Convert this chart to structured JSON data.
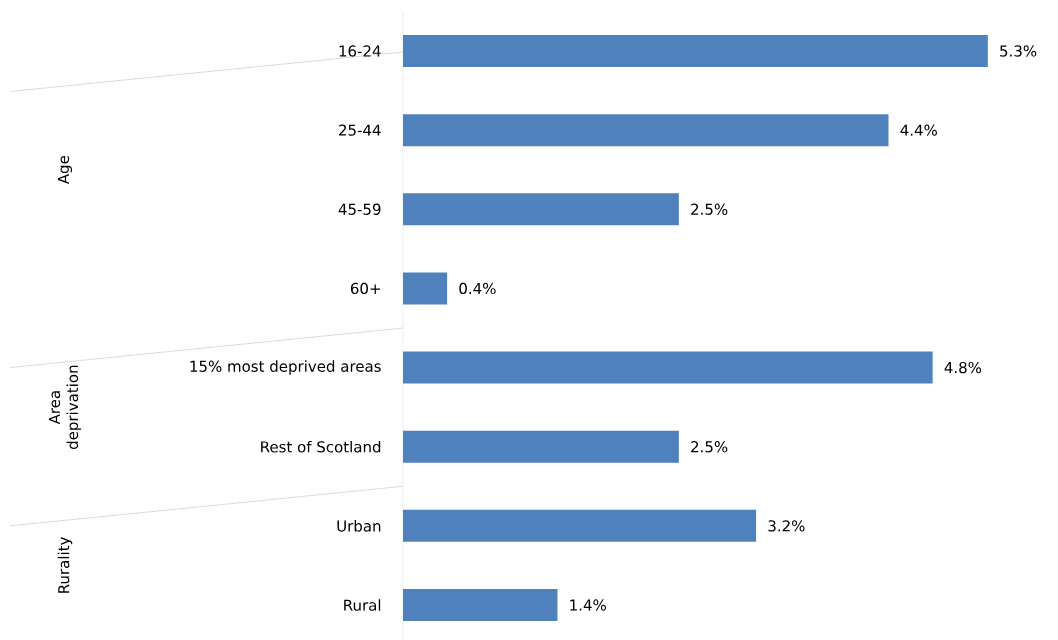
{
  "chart_data": {
    "type": "bar",
    "orientation": "horizontal",
    "categories": [
      "16-24",
      "25-44",
      "45-59",
      "60+",
      "15% most deprived areas",
      "Rest of Scotland",
      "Urban",
      "Rural"
    ],
    "values": [
      5.3,
      4.4,
      2.5,
      0.4,
      4.8,
      2.5,
      3.2,
      1.4
    ],
    "value_labels": [
      "5.3%",
      "4.4%",
      "2.5%",
      "0.4%",
      "4.8%",
      "2.5%",
      "3.2%",
      "1.4%"
    ],
    "color": "#4f81bd",
    "annotations": [
      "Age",
      "Area deprivation",
      "Rurality"
    ]
  }
}
